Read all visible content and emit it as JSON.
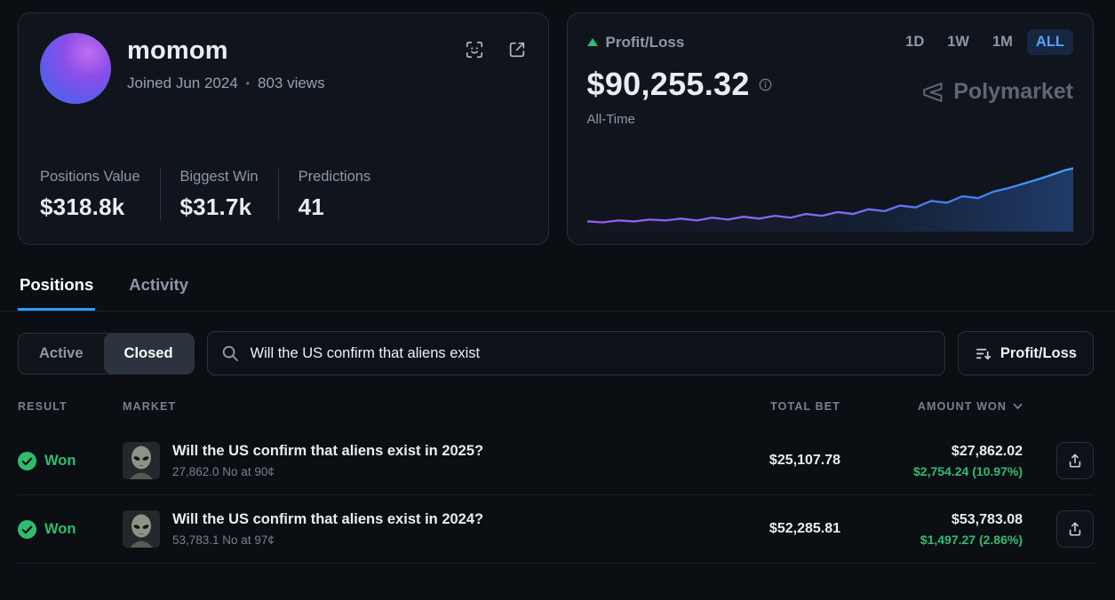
{
  "profile": {
    "username": "momom",
    "joined": "Joined Jun 2024",
    "dot": "•",
    "views": "803 views",
    "stats": [
      {
        "label": "Positions Value",
        "value": "$318.8k"
      },
      {
        "label": "Biggest Win",
        "value": "$31.7k"
      },
      {
        "label": "Predictions",
        "value": "41"
      }
    ]
  },
  "pnl": {
    "title": "Profit/Loss",
    "value": "$90,255.32",
    "period": "All-Time",
    "watermark": "Polymarket",
    "ranges": [
      {
        "label": "1D",
        "active": false
      },
      {
        "label": "1W",
        "active": false
      },
      {
        "label": "1M",
        "active": false
      },
      {
        "label": "ALL",
        "active": true
      }
    ]
  },
  "tabs": [
    {
      "label": "Positions",
      "active": true
    },
    {
      "label": "Activity",
      "active": false
    }
  ],
  "filters": {
    "segments": [
      {
        "label": "Active",
        "active": false
      },
      {
        "label": "Closed",
        "active": true
      }
    ],
    "search_value": "Will the US confirm that aliens exist",
    "sort_label": "Profit/Loss"
  },
  "table": {
    "headers": {
      "result": "RESULT",
      "market": "MARKET",
      "total_bet": "TOTAL BET",
      "amount_won": "AMOUNT WON"
    },
    "rows": [
      {
        "result": "Won",
        "title": "Will the US confirm that aliens exist in 2025?",
        "subtitle": "27,862.0 No at 90¢",
        "total_bet": "$25,107.78",
        "amount_won": "$27,862.02",
        "profit": "$2,754.24 (10.97%)"
      },
      {
        "result": "Won",
        "title": "Will the US confirm that aliens exist in 2024?",
        "subtitle": "53,783.1 No at 97¢",
        "total_bet": "$52,285.81",
        "amount_won": "$53,783.08",
        "profit": "$1,497.27 (2.86%)"
      }
    ]
  },
  "colors": {
    "green": "#2ebd70",
    "active_range_blue": "#51a2ff",
    "tab_underline_blue": "#2e9bff"
  },
  "chart_data": {
    "type": "area",
    "title": "Profit/Loss",
    "period": "All-Time",
    "end_value": 90255.32,
    "y_range": [
      0,
      90255.32
    ],
    "trend": "up",
    "line_gradient": [
      "#9a5cf0",
      "#3f8cff"
    ],
    "svg_points": [
      [
        0,
        69
      ],
      [
        18,
        70
      ],
      [
        36,
        68
      ],
      [
        54,
        69
      ],
      [
        72,
        67
      ],
      [
        90,
        68
      ],
      [
        108,
        66
      ],
      [
        126,
        68
      ],
      [
        144,
        65
      ],
      [
        162,
        67
      ],
      [
        180,
        64
      ],
      [
        198,
        66
      ],
      [
        216,
        63
      ],
      [
        234,
        65
      ],
      [
        252,
        61
      ],
      [
        270,
        63
      ],
      [
        288,
        59
      ],
      [
        306,
        61
      ],
      [
        324,
        56
      ],
      [
        342,
        58
      ],
      [
        360,
        52
      ],
      [
        378,
        54
      ],
      [
        396,
        47
      ],
      [
        414,
        49
      ],
      [
        432,
        42
      ],
      [
        450,
        44
      ],
      [
        468,
        37
      ],
      [
        486,
        33
      ],
      [
        504,
        28
      ],
      [
        522,
        23
      ],
      [
        538,
        18
      ],
      [
        550,
        14
      ],
      [
        560,
        12
      ]
    ]
  }
}
